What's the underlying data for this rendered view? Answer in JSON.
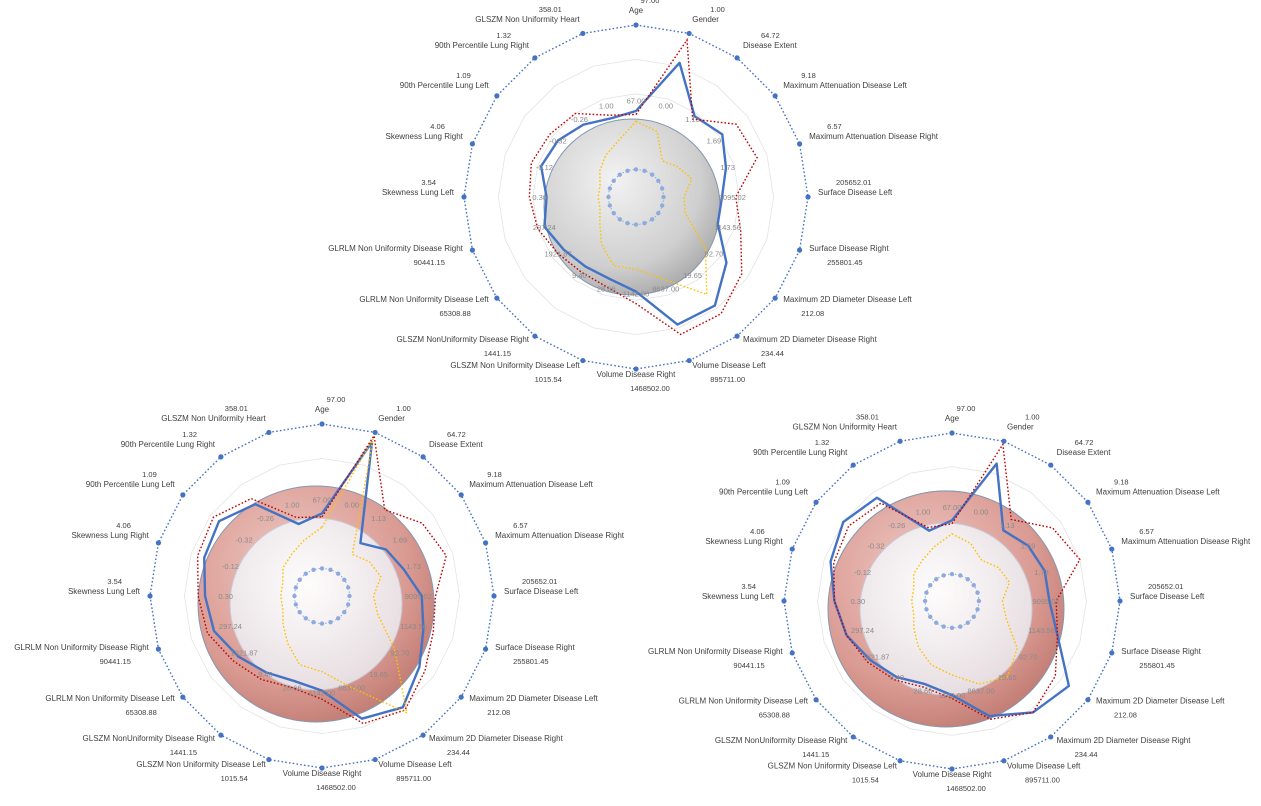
{
  "chart_data": [
    {
      "type": "radar",
      "overlay": "grey-sphere",
      "axes": [
        {
          "name": "Age",
          "max": "97.00",
          "inner": "67.00"
        },
        {
          "name": "Gender",
          "max": "1.00",
          "inner": "0.00"
        },
        {
          "name": "Disease Extent",
          "max": "64.72",
          "inner": "1.13"
        },
        {
          "name": "Maximum Attenuation Disease Left",
          "max": "9.18",
          "inner": "1.69"
        },
        {
          "name": "Maximum Attenuation Disease Right",
          "max": "6.57",
          "inner": "1.73"
        },
        {
          "name": "Surface Disease Left",
          "max": "205652.01",
          "inner": "9095.02"
        },
        {
          "name": "Surface Disease Right",
          "max": "255801.45",
          "inner": "1143.56"
        },
        {
          "name": "Maximum 2D Diameter Disease Left",
          "max": "212.08",
          "inner": "92.70"
        },
        {
          "name": "Maximum 2D Diameter Disease Right",
          "max": "234.44",
          "inner": "19.65"
        },
        {
          "name": "Volume Disease Left",
          "max": "895711.00",
          "inner": "8637.00"
        },
        {
          "name": "Volume Disease Right",
          "max": "1468502.00",
          "inner": "1142.00"
        },
        {
          "name": "GLSZM Non Uniformity Disease Left",
          "max": "1015.54",
          "inner": "28.66"
        },
        {
          "name": "GLSZM NonUniformity Disease Right",
          "max": "1441.15",
          "inner": "9.40"
        },
        {
          "name": "GLRLM Non Uniformity Disease Left",
          "max": "65308.88",
          "inner": "1921.87"
        },
        {
          "name": "GLRLM Non Uniformity Disease Right",
          "max": "90441.15",
          "inner": "297.24"
        },
        {
          "name": "Skewness Lung Left",
          "max": "3.54",
          "inner": "0.30"
        },
        {
          "name": "Skewness Lung Right",
          "max": "4.06",
          "inner": "-0.12"
        },
        {
          "name": "90th Percentile Lung Left",
          "max": "1.09",
          "inner": "-0.32"
        },
        {
          "name": "90th Percentile Lung Right",
          "max": "1.32",
          "inner": "-0.26"
        },
        {
          "name": "GLSZM Non Uniformity Heart",
          "max": "358.01",
          "inner": "1.00"
        }
      ],
      "series": [
        {
          "style": "solid",
          "color": "#4472c4",
          "values": [
            0.5,
            0.82,
            0.58,
            0.62,
            0.55,
            0.5,
            0.5,
            0.65,
            0.78,
            0.78,
            0.55,
            0.5,
            0.5,
            0.52,
            0.56,
            0.52,
            0.58,
            0.56,
            0.52,
            0.48
          ]
        },
        {
          "style": "dotted",
          "color": "#c00000",
          "values": [
            0.48,
            0.96,
            0.56,
            0.72,
            0.74,
            0.58,
            0.64,
            0.76,
            0.84,
            0.84,
            0.62,
            0.55,
            0.54,
            0.56,
            0.6,
            0.62,
            0.64,
            0.62,
            0.6,
            0.5
          ]
        },
        {
          "style": "dotted",
          "color": "#ffc000",
          "values": [
            0.44,
            0.4,
            0.26,
            0.3,
            0.34,
            0.28,
            0.3,
            0.5,
            0.7,
            0.5,
            0.42,
            0.42,
            0.34,
            0.26,
            0.22,
            0.22,
            0.22,
            0.26,
            0.3,
            0.34
          ]
        }
      ]
    },
    {
      "type": "radar",
      "overlay": "red-sphere",
      "axes": [
        {
          "name": "Age",
          "max": "97.00",
          "inner": "67.00"
        },
        {
          "name": "Gender",
          "max": "1.00",
          "inner": "0.00"
        },
        {
          "name": "Disease Extent",
          "max": "64.72",
          "inner": "1.13"
        },
        {
          "name": "Maximum Attenuation Disease Left",
          "max": "9.18",
          "inner": "1.69"
        },
        {
          "name": "Maximum Attenuation Disease Right",
          "max": "6.57",
          "inner": "1.73"
        },
        {
          "name": "Surface Disease Left",
          "max": "205652.01",
          "inner": "9095.02"
        },
        {
          "name": "Surface Disease Right",
          "max": "255801.45",
          "inner": "1143.56"
        },
        {
          "name": "Maximum 2D Diameter Disease Left",
          "max": "212.08",
          "inner": "92.70"
        },
        {
          "name": "Maximum 2D Diameter Disease Right",
          "max": "234.44",
          "inner": "19.65"
        },
        {
          "name": "Volume Disease Left",
          "max": "895711.00",
          "inner": "8637.00"
        },
        {
          "name": "Volume Disease Right",
          "max": "1468502.00",
          "inner": "1142.00"
        },
        {
          "name": "GLSZM Non Uniformity Disease Left",
          "max": "1015.54",
          "inner": "28.66"
        },
        {
          "name": "GLSZM NonUniformity Disease Right",
          "max": "1441.15",
          "inner": "9.40"
        },
        {
          "name": "GLRLM Non Uniformity Disease Left",
          "max": "65308.88",
          "inner": "1921.87"
        },
        {
          "name": "GLRLM Non Uniformity Disease Right",
          "max": "90441.15",
          "inner": "297.24"
        },
        {
          "name": "Skewness Lung Left",
          "max": "3.54",
          "inner": "0.30"
        },
        {
          "name": "Skewness Lung Right",
          "max": "4.06",
          "inner": "-0.12"
        },
        {
          "name": "90th Percentile Lung Left",
          "max": "1.09",
          "inner": "-0.32"
        },
        {
          "name": "90th Percentile Lung Right",
          "max": "1.32",
          "inner": "-0.26"
        },
        {
          "name": "GLSZM Non Uniformity Heart",
          "max": "358.01",
          "inner": "1.00"
        }
      ],
      "series": [
        {
          "style": "solid",
          "color": "#4472c4",
          "values": [
            0.48,
            0.94,
            0.38,
            0.46,
            0.5,
            0.58,
            0.62,
            0.7,
            0.8,
            0.75,
            0.55,
            0.52,
            0.55,
            0.6,
            0.66,
            0.68,
            0.72,
            0.74,
            0.66,
            0.44
          ]
        },
        {
          "style": "dotted",
          "color": "#c00000",
          "values": [
            0.46,
            0.98,
            0.62,
            0.72,
            0.76,
            0.66,
            0.68,
            0.74,
            0.82,
            0.78,
            0.6,
            0.56,
            0.6,
            0.64,
            0.7,
            0.72,
            0.76,
            0.78,
            0.7,
            0.48
          ]
        },
        {
          "style": "dotted",
          "color": "#ffc000",
          "values": [
            0.4,
            0.96,
            0.3,
            0.34,
            0.36,
            0.3,
            0.34,
            0.52,
            0.84,
            0.56,
            0.44,
            0.42,
            0.34,
            0.28,
            0.24,
            0.24,
            0.24,
            0.28,
            0.3,
            0.34
          ]
        }
      ]
    },
    {
      "type": "radar",
      "overlay": "red-sphere-grey-arc",
      "axes": [
        {
          "name": "Age",
          "max": "97.00",
          "inner": "67.00"
        },
        {
          "name": "Gender",
          "max": "1.00",
          "inner": "0.00"
        },
        {
          "name": "Disease Extent",
          "max": "64.72",
          "inner": "1.13"
        },
        {
          "name": "Maximum Attenuation Disease Left",
          "max": "9.18",
          "inner": "1.69"
        },
        {
          "name": "Maximum Attenuation Disease Right",
          "max": "6.57",
          "inner": "1.73"
        },
        {
          "name": "Surface Disease Left",
          "max": "205652.01",
          "inner": "9095.02"
        },
        {
          "name": "Surface Disease Right",
          "max": "255801.45",
          "inner": "1143.56"
        },
        {
          "name": "Maximum 2D Diameter Disease Left",
          "max": "212.08",
          "inner": "92.70"
        },
        {
          "name": "Maximum 2D Diameter Disease Right",
          "max": "234.44",
          "inner": "19.65"
        },
        {
          "name": "Volume Disease Left",
          "max": "895711.00",
          "inner": "8637.00"
        },
        {
          "name": "Volume Disease Right",
          "max": "1468502.00",
          "inner": "1142.00"
        },
        {
          "name": "GLSZM Non Uniformity Disease Left",
          "max": "1015.54",
          "inner": "28.66"
        },
        {
          "name": "GLSZM NonUniformity Disease Right",
          "max": "1441.15",
          "inner": "9.40"
        },
        {
          "name": "GLRLM Non Uniformity Disease Left",
          "max": "65308.88",
          "inner": "1921.87"
        },
        {
          "name": "GLRLM Non Uniformity Disease Right",
          "max": "90441.15",
          "inner": "297.24"
        },
        {
          "name": "Skewness Lung Left",
          "max": "3.54",
          "inner": "0.30"
        },
        {
          "name": "Skewness Lung Right",
          "max": "4.06",
          "inner": "-0.12"
        },
        {
          "name": "90th Percentile Lung Left",
          "max": "1.09",
          "inner": "-0.32"
        },
        {
          "name": "90th Percentile Lung Right",
          "max": "1.32",
          "inner": "-0.26"
        },
        {
          "name": "GLSZM Non Uniformity Heart",
          "max": "358.01",
          "inner": "1.00"
        }
      ],
      "series": [
        {
          "style": "solid",
          "color": "#4472c4",
          "values": [
            0.48,
            0.86,
            0.52,
            0.56,
            0.58,
            0.58,
            0.66,
            0.86,
            0.82,
            0.72,
            0.56,
            0.52,
            0.56,
            0.6,
            0.66,
            0.7,
            0.76,
            0.8,
            0.76,
            0.44
          ]
        },
        {
          "style": "dotted",
          "color": "#c00000",
          "values": [
            0.46,
            0.98,
            0.6,
            0.74,
            0.8,
            0.62,
            0.66,
            0.76,
            0.82,
            0.74,
            0.58,
            0.54,
            0.58,
            0.62,
            0.66,
            0.7,
            0.74,
            0.76,
            0.72,
            0.46
          ]
        },
        {
          "style": "dotted",
          "color": "#ffc000",
          "values": [
            0.4,
            0.36,
            0.3,
            0.34,
            0.36,
            0.3,
            0.34,
            0.48,
            0.56,
            0.52,
            0.44,
            0.4,
            0.34,
            0.28,
            0.24,
            0.24,
            0.24,
            0.28,
            0.3,
            0.34
          ]
        }
      ]
    }
  ]
}
